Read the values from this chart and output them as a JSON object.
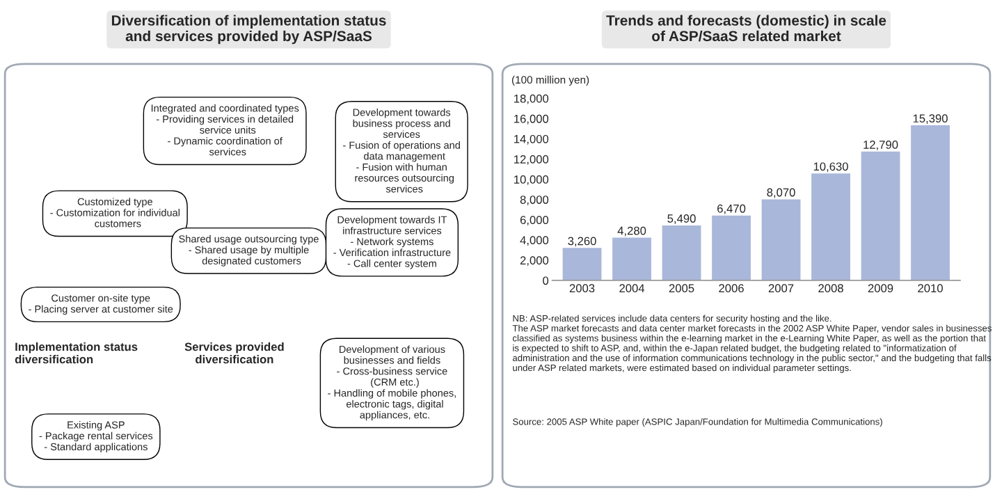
{
  "chart_data": [
    {
      "type": "other",
      "title": "Diversification of implementation status\nand services provided by ASP/SaaS",
      "annotations": [
        "Integrated and coordinated types\n- Providing services in detailed\n  service units\n- Dynamic coordination of\n  services",
        "Development towards\nbusiness process and\nservices\n- Fusion of operations and\n  data management\n- Fusion with human\n  resources outsourcing\n  services",
        "Customized type\n- Customization for individual\n  customers",
        "Shared usage outsourcing type\n- Shared usage by multiple\n  designated customers",
        "Development towards IT\ninfrastructure services\n- Network systems\n- Verification infrastructure\n- Call center system",
        "Customer on-site type\n- Placing server at customer site",
        "Development of various\nbusinesses and fields\n- Cross-business service\n  (CRM etc.)\n- Handling of mobile phones,\n  electronic tags, digital\n  appliances, etc.",
        "Implementation status\ndiversification",
        "Services provided\ndiversification",
        "Existing ASP\n- Package rental services\n- Standard applications"
      ]
    },
    {
      "type": "bar",
      "title": "Trends and forecasts (domestic) in scale\nof ASP/SaaS related market",
      "ylabel": "(100 million yen)",
      "categories": [
        "2003",
        "2004",
        "2005",
        "2006",
        "2007",
        "2008",
        "2009",
        "2010"
      ],
      "values": [
        3260,
        4280,
        5490,
        6470,
        8070,
        10630,
        12790,
        15390
      ],
      "value_labels": [
        "3,260",
        "4,280",
        "5,490",
        "6,470",
        "8,070",
        "10,630",
        "12,790",
        "15,390"
      ],
      "color": "#a9b7da",
      "ylim": [
        0,
        18000
      ],
      "yticks": [
        0,
        {
          "value": 2000,
          "label": "2,000"
        },
        {
          "value": 4000,
          "label": "4,000"
        },
        {
          "value": 6000,
          "label": "6,000"
        },
        {
          "value": 8000,
          "label": "8,000"
        },
        {
          "value": 10000,
          "label": "10,000"
        },
        {
          "value": 12000,
          "label": "12,000"
        },
        {
          "value": 14000,
          "label": "14,000"
        },
        {
          "value": 16000,
          "label": "16,000"
        },
        {
          "value": 18000,
          "label": "18,000"
        }
      ],
      "annotations": [
        "NB: ASP-related services include data centers for security hosting and the like.\nThe ASP market forecasts and data center market forecasts in the 2002 ASP White Paper, vendor sales in businesses classified as systems business within the e-learning market in the e-Learning White Paper, as well as the portion that is expected to shift to ASP, and, within the e-Japan related budget, the budgeting related to \"informatization of administration and the use of information communications technology in the public sector,\" and the budgeting that falls under ASP related markets, were estimated based on individual parameter settings.",
        "Source: 2005 ASP White paper (ASPIC Japan/Foundation for Multimedia Communications)"
      ]
    }
  ]
}
